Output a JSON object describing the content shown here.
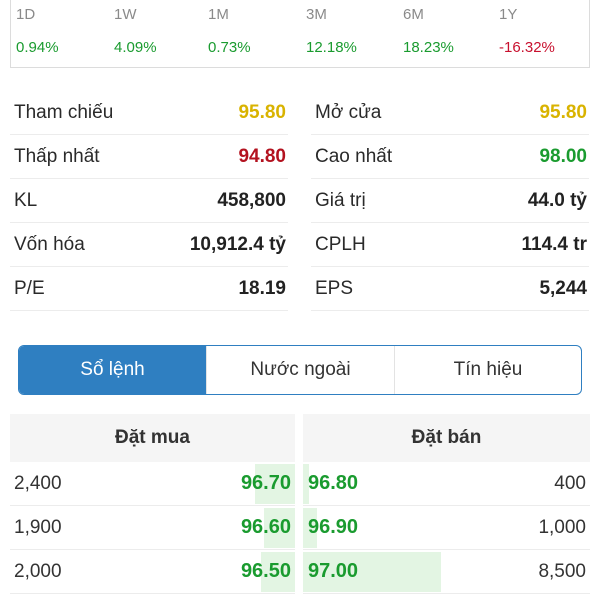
{
  "performance": [
    {
      "label": "1D",
      "value": "0.94%",
      "color": "#1a9b2f"
    },
    {
      "label": "1W",
      "value": "4.09%",
      "color": "#1a9b2f"
    },
    {
      "label": "1M",
      "value": "0.73%",
      "color": "#1a9b2f"
    },
    {
      "label": "3M",
      "value": "12.18%",
      "color": "#1a9b2f"
    },
    {
      "label": "6M",
      "value": "18.23%",
      "color": "#1a9b2f"
    },
    {
      "label": "1Y",
      "value": "-16.32%",
      "color": "#c8102e"
    }
  ],
  "stats": [
    {
      "left": {
        "label": "Tham chiếu",
        "value": "95.80",
        "color": "#d9b300"
      },
      "right": {
        "label": "Mở cửa",
        "value": "95.80",
        "color": "#d9b300"
      }
    },
    {
      "left": {
        "label": "Thấp nhất",
        "value": "94.80",
        "color": "#b3121f"
      },
      "right": {
        "label": "Cao nhất",
        "value": "98.00",
        "color": "#1a9b2f"
      }
    },
    {
      "left": {
        "label": "KL",
        "value": "458,800",
        "color": "#222222"
      },
      "right": {
        "label": "Giá trị",
        "value": "44.0 tỷ",
        "color": "#222222"
      }
    },
    {
      "left": {
        "label": "Vốn hóa",
        "value": "10,912.4 tỷ",
        "color": "#222222"
      },
      "right": {
        "label": "CPLH",
        "value": "114.4 tr",
        "color": "#222222"
      }
    },
    {
      "left": {
        "label": "P/E",
        "value": "18.19",
        "color": "#222222"
      },
      "right": {
        "label": "EPS",
        "value": "5,244",
        "color": "#222222"
      }
    }
  ],
  "tabs": [
    {
      "label": "Sổ lệnh",
      "active": true
    },
    {
      "label": "Nước ngoài",
      "active": false
    },
    {
      "label": "Tín hiệu",
      "active": false
    }
  ],
  "order_book": {
    "buy_header": "Đặt mua",
    "sell_header": "Đặt bán",
    "rows": [
      {
        "bid_volume": "2,400",
        "bid_price": "96.70",
        "ask_price": "96.80",
        "ask_volume": "400",
        "bid_depth": 0.14,
        "ask_depth": 0.02
      },
      {
        "bid_volume": "1,900",
        "bid_price": "96.60",
        "ask_price": "96.90",
        "ask_volume": "1,000",
        "bid_depth": 0.11,
        "ask_depth": 0.05
      },
      {
        "bid_volume": "2,000",
        "bid_price": "96.50",
        "ask_price": "97.00",
        "ask_volume": "8,500",
        "bid_depth": 0.12,
        "ask_depth": 0.48
      }
    ],
    "bar_color": "#e3f5e3",
    "price_color": "#1a9b2f"
  }
}
